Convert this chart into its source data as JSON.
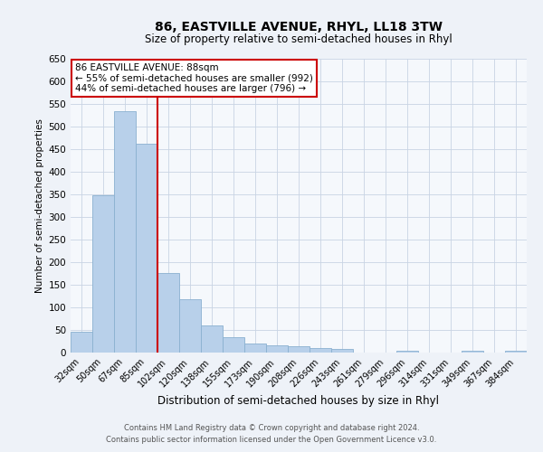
{
  "title": "86, EASTVILLE AVENUE, RHYL, LL18 3TW",
  "subtitle": "Size of property relative to semi-detached houses in Rhyl",
  "xlabel": "Distribution of semi-detached houses by size in Rhyl",
  "ylabel": "Number of semi-detached properties",
  "bar_labels": [
    "32sqm",
    "50sqm",
    "67sqm",
    "85sqm",
    "102sqm",
    "120sqm",
    "138sqm",
    "155sqm",
    "173sqm",
    "190sqm",
    "208sqm",
    "226sqm",
    "243sqm",
    "261sqm",
    "279sqm",
    "296sqm",
    "314sqm",
    "331sqm",
    "349sqm",
    "367sqm",
    "384sqm"
  ],
  "bar_heights": [
    46,
    348,
    535,
    463,
    176,
    119,
    60,
    35,
    20,
    16,
    15,
    10,
    8,
    0,
    0,
    5,
    0,
    0,
    5,
    0,
    5
  ],
  "bar_color": "#b8d0ea",
  "bar_edgecolor": "#8ab0d0",
  "vline_color": "#cc0000",
  "annotation_title": "86 EASTVILLE AVENUE: 88sqm",
  "annotation_line1": "← 55% of semi-detached houses are smaller (992)",
  "annotation_line2": "44% of semi-detached houses are larger (796) →",
  "annotation_box_facecolor": "#ffffff",
  "annotation_box_edgecolor": "#cc0000",
  "ylim": [
    0,
    650
  ],
  "yticks": [
    0,
    50,
    100,
    150,
    200,
    250,
    300,
    350,
    400,
    450,
    500,
    550,
    600,
    650
  ],
  "footnote1": "Contains HM Land Registry data © Crown copyright and database right 2024.",
  "footnote2": "Contains public sector information licensed under the Open Government Licence v3.0.",
  "bg_color": "#eef2f8",
  "plot_bg_color": "#f5f8fc",
  "grid_color": "#c8d4e4"
}
